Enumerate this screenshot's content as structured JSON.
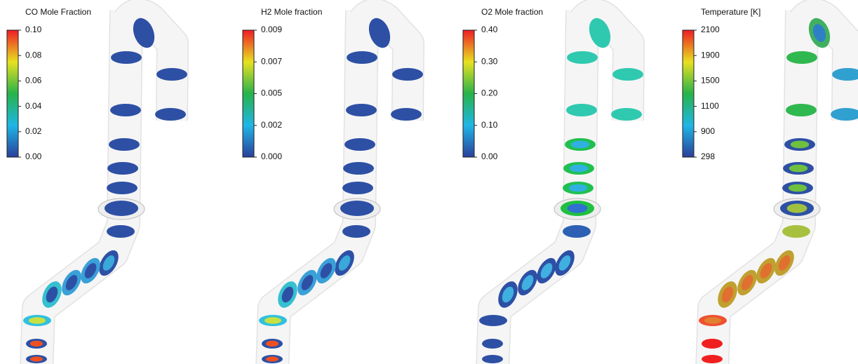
{
  "panels": [
    {
      "title": "CO Mole Fraction",
      "scale_labels": [
        "0.10",
        "0.08",
        "0.06",
        "0.04",
        "0.02",
        "0.00"
      ]
    },
    {
      "title": "H2 Mole fraction",
      "scale_labels": [
        "0.009",
        "0.007",
        "0.005",
        "0.002",
        "0.000"
      ]
    },
    {
      "title": "O2 Mole fraction",
      "scale_labels": [
        "0.40",
        "0.30",
        "0.20",
        "0.10",
        "0.00"
      ]
    },
    {
      "title": "Temperature [K]",
      "scale_labels": [
        "2100",
        "1900",
        "1500",
        "1100",
        "900",
        "298"
      ]
    }
  ]
}
